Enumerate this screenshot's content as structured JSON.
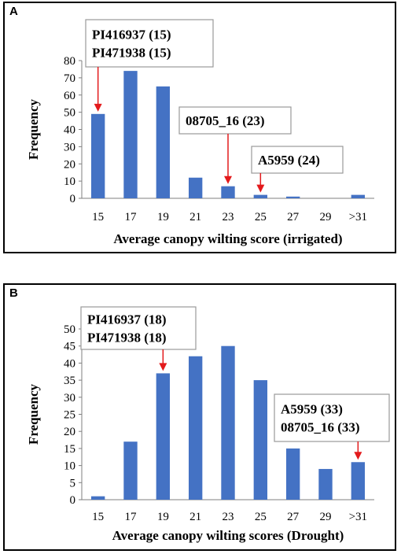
{
  "chart_data": [
    {
      "type": "bar",
      "panel_label": "A",
      "categories": [
        "15",
        "17",
        "19",
        "21",
        "23",
        "25",
        "27",
        "29",
        ">31"
      ],
      "values": [
        49,
        74,
        65,
        12,
        7,
        2,
        1,
        0,
        2
      ],
      "xlabel": "Average canopy wilting score (irrigated)",
      "ylabel": "Frequency",
      "ylim": [
        0,
        80
      ],
      "yticks": [
        "0",
        "10",
        "20",
        "30",
        "40",
        "50",
        "60",
        "70",
        "80"
      ],
      "grid": false,
      "bar_color": "#4472c4",
      "annotations": [
        {
          "lines": [
            "PI416937 (15)",
            "PI471938 (15)"
          ],
          "category_index": 0,
          "arrow_to_value": 49
        },
        {
          "lines": [
            "08705_16 (23)"
          ],
          "category_index": 4,
          "arrow_to_value": 7
        },
        {
          "lines": [
            "A5959 (24)"
          ],
          "category_index": 5,
          "arrow_to_value": 2
        }
      ]
    },
    {
      "type": "bar",
      "panel_label": "B",
      "categories": [
        "15",
        "17",
        "19",
        "21",
        "23",
        "25",
        "27",
        "29",
        ">31"
      ],
      "values": [
        1,
        17,
        37,
        42,
        45,
        35,
        15,
        9,
        11
      ],
      "xlabel": "Average canopy wilting scores (Drought)",
      "ylabel": "Frequency",
      "ylim": [
        0,
        50
      ],
      "yticks": [
        "0",
        "5",
        "10",
        "15",
        "20",
        "25",
        "30",
        "35",
        "40",
        "45",
        "50"
      ],
      "grid": false,
      "bar_color": "#4472c4",
      "annotations": [
        {
          "lines": [
            "PI416937 (18)",
            "PI471938 (18)"
          ],
          "category_index": 2,
          "arrow_to_value": 37
        },
        {
          "lines": [
            "A5959 (33)",
            "08705_16 (33)"
          ],
          "category_index": 8,
          "arrow_to_value": 11
        }
      ]
    }
  ]
}
